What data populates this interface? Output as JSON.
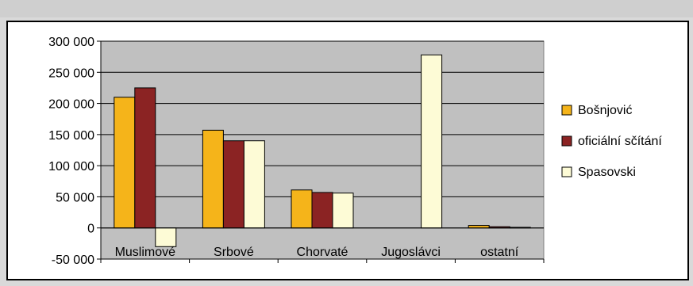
{
  "chart_data": {
    "type": "bar",
    "categories": [
      "Muslimové",
      "Srbové",
      "Chorvaté",
      "Jugoslávci",
      "ostatní"
    ],
    "series": [
      {
        "name": "Bošnjović",
        "color": "#f5b41a",
        "values": [
          210000,
          157000,
          61000,
          0,
          4000
        ]
      },
      {
        "name": "oficiální sčítání",
        "color": "#8b2323",
        "values": [
          225000,
          140000,
          57000,
          0,
          2000
        ]
      },
      {
        "name": "Spasovski",
        "color": "#fdfbd6",
        "values": [
          -30000,
          140000,
          56000,
          278000,
          1000
        ]
      }
    ],
    "ylim": [
      -50000,
      300000
    ],
    "yticks": [
      -50000,
      0,
      50000,
      100000,
      150000,
      200000,
      250000,
      300000
    ],
    "ytick_labels": [
      "-50 000",
      "0",
      "50 000",
      "100 000",
      "150 000",
      "200 000",
      "250 000",
      "300 000"
    ],
    "title": "",
    "xlabel": "",
    "ylabel": "",
    "grid": true,
    "legend_position": "right"
  }
}
